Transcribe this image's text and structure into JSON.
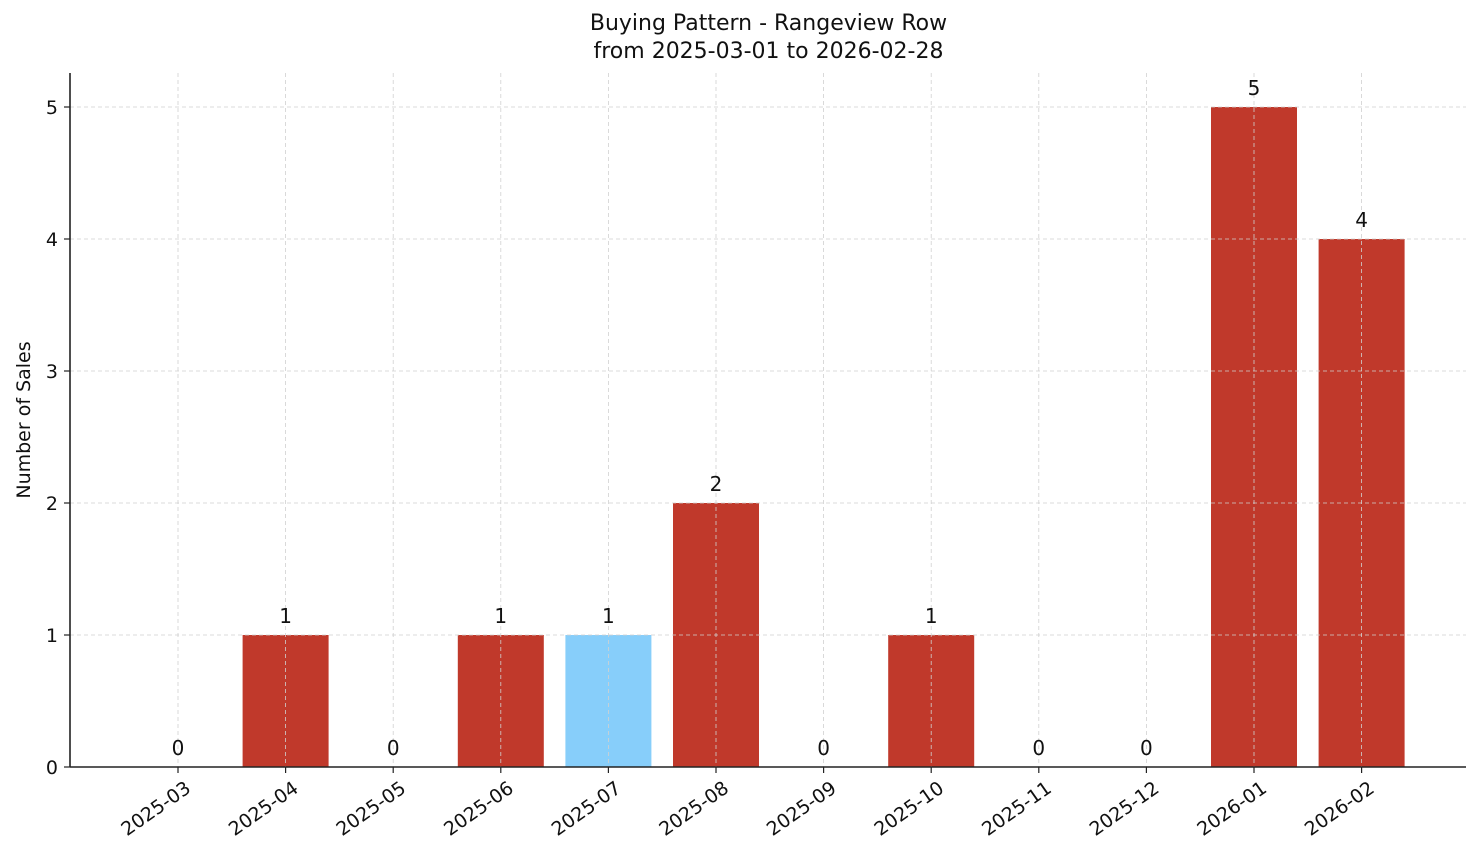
{
  "chart_data": {
    "type": "bar",
    "title": "Buying Pattern - Rangeview Row",
    "subtitle": "from 2025-03-01 to 2026-02-28",
    "xlabel": "",
    "ylabel": "Number of Sales",
    "categories": [
      "2025-03",
      "2025-04",
      "2025-05",
      "2025-06",
      "2025-07",
      "2025-08",
      "2025-09",
      "2025-10",
      "2025-11",
      "2025-12",
      "2026-01",
      "2026-02"
    ],
    "values": [
      0,
      1,
      0,
      1,
      1,
      2,
      0,
      1,
      0,
      0,
      5,
      4
    ],
    "data_labels": [
      "0",
      "1",
      "0",
      "1",
      "1",
      "2",
      "0",
      "1",
      "0",
      "0",
      "5",
      "4"
    ],
    "highlighted_category": "2025-07",
    "yticks": [
      0,
      1,
      2,
      3,
      4,
      5
    ],
    "ylim": [
      0,
      5.25
    ],
    "grid": true,
    "legend": null,
    "colors": {
      "default_bar": "#c0392b",
      "highlight_bar": "#87cefa",
      "grid": "#d0d0d0",
      "axis": "#222222"
    }
  }
}
